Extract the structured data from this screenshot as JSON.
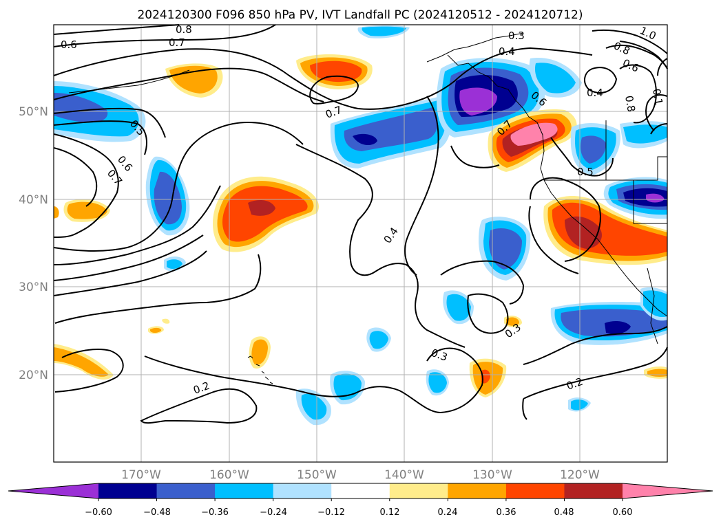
{
  "title": "2024120300 F096 850 hPa PV, IVT Landfall PC (2024120512 - 2024120712)",
  "lat_labels": [
    "50°N",
    "40°N",
    "30°N",
    "20°N"
  ],
  "lon_labels": [
    "170°W",
    "160°W",
    "150°W",
    "140°W",
    "130°W",
    "120°W"
  ],
  "colorbar": {
    "tick_labels": [
      "−0.60",
      "−0.48",
      "−0.36",
      "−0.24",
      "−0.12",
      "0.12",
      "0.24",
      "0.36",
      "0.48",
      "0.60"
    ],
    "colors": [
      "#9b30d6",
      "#000090",
      "#3a5fcd",
      "#00bfff",
      "#b0e2ff",
      "#ffffff",
      "#ffec8b",
      "#ffa500",
      "#ff4500",
      "#b22222",
      "#ff82ab"
    ]
  },
  "contour_labels": [
    "0.8",
    "0.7",
    "0.6",
    "0.3",
    "0.4",
    "1.0",
    "0.8",
    "0.6",
    "0.4",
    "0.7",
    "0.5",
    "0.6",
    "0.7",
    "0.4",
    "0.3",
    "0.3",
    "0.2",
    "0.2",
    "0.5",
    "0.6",
    "0.7",
    "0.8",
    "0.1"
  ],
  "colors": {
    "grid": "#b0b0b0",
    "contour": "#000000",
    "frame": "#000000"
  }
}
